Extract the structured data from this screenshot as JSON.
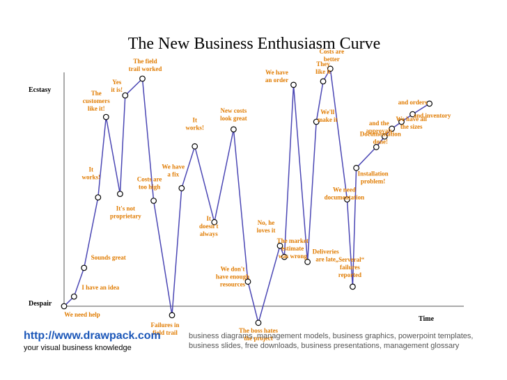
{
  "chart_data": {
    "type": "line",
    "title": "The New Business Enthusiasm Curve",
    "xlabel": "Time",
    "ylabel_top": "Ecstasy",
    "ylabel_bottom": "Despair",
    "xlim": [
      0,
      100
    ],
    "ylim": [
      0,
      100
    ],
    "line_color": "#4a46b4",
    "label_color": "#e07b00",
    "points": [
      {
        "x": 0.0,
        "y": 0.0,
        "label": [
          "We need help"
        ]
      },
      {
        "x": 2.5,
        "y": 4.2,
        "label": [
          "I have an idea"
        ]
      },
      {
        "x": 5.0,
        "y": 16.7,
        "label": [
          "Sounds great"
        ]
      },
      {
        "x": 8.5,
        "y": 47.4,
        "label": [
          "It",
          "works!"
        ]
      },
      {
        "x": 10.5,
        "y": 82.4,
        "label": [
          "The",
          "customers",
          "like it!"
        ]
      },
      {
        "x": 14.0,
        "y": 48.9,
        "label": [
          "It's not",
          "proprietary"
        ]
      },
      {
        "x": 15.3,
        "y": 91.8,
        "label": [
          "Yes",
          "it is!"
        ]
      },
      {
        "x": 19.6,
        "y": 99.1,
        "label": [
          "The field",
          "trail worked"
        ]
      },
      {
        "x": 22.4,
        "y": 45.9,
        "label": [
          "Costs are",
          "too high"
        ]
      },
      {
        "x": 27.0,
        "y": -3.9,
        "label": [
          "Failures in",
          "field trail"
        ]
      },
      {
        "x": 29.4,
        "y": 51.4,
        "label": [
          "We have",
          "a fix"
        ]
      },
      {
        "x": 32.7,
        "y": 69.6,
        "label": [
          "It",
          "works!"
        ]
      },
      {
        "x": 37.6,
        "y": 36.6,
        "label": [
          "It",
          "doesn't",
          "always"
        ]
      },
      {
        "x": 42.4,
        "y": 77.0,
        "label": [
          "New costs",
          "look great"
        ]
      },
      {
        "x": 46.0,
        "y": 10.7,
        "label": [
          "We don't",
          "have enough",
          "resources"
        ]
      },
      {
        "x": 48.6,
        "y": -7.2,
        "label": [
          "The boss hates",
          "the project"
        ]
      },
      {
        "x": 54.0,
        "y": 26.3,
        "label": [
          "No, he",
          "loves it"
        ]
      },
      {
        "x": 55.1,
        "y": 21.5,
        "label": [
          "The market",
          "estimate",
          "was wrong"
        ]
      },
      {
        "x": 57.4,
        "y": 96.4,
        "label": [
          "We have",
          "an order"
        ]
      },
      {
        "x": 60.9,
        "y": 19.3,
        "label": [
          "Deliveries",
          "are late"
        ]
      },
      {
        "x": 63.1,
        "y": 80.3,
        "label": [
          "We'll",
          "make it"
        ]
      },
      {
        "x": 64.8,
        "y": 97.9,
        "label": [
          "They",
          "like it"
        ]
      },
      {
        "x": 66.6,
        "y": 103.4,
        "label": [
          "Costs are",
          "better"
        ]
      },
      {
        "x": 70.8,
        "y": 46.5,
        "label": [
          "We need",
          "documentation"
        ]
      },
      {
        "x": 72.2,
        "y": 8.5,
        "label": [
          "„Serveral“",
          "failures",
          "reported"
        ]
      },
      {
        "x": 73.1,
        "y": 60.2,
        "label": [
          "Installation",
          "problem!"
        ]
      },
      {
        "x": 78.1,
        "y": 69.3,
        "label": [
          "Documentation",
          "done!"
        ]
      },
      {
        "x": 80.2,
        "y": 73.9,
        "label": [
          "and the",
          "approvals"
        ]
      },
      {
        "x": 82.0,
        "y": 77.3,
        "label": [
          "We have all",
          "the sizes"
        ]
      },
      {
        "x": 84.4,
        "y": 80.3,
        "label": [
          "and inventory"
        ]
      },
      {
        "x": 87.2,
        "y": 83.6,
        "label": [
          "and orders"
        ]
      },
      {
        "x": 91.4,
        "y": 88.2,
        "label": []
      }
    ]
  },
  "footer": {
    "link_text": "http://www.drawpack.com",
    "tagline": "your visual business knowledge",
    "description": "business diagrams, management models, business graphics, powerpoint templates, business slides, free downloads, business presentations, management glossary"
  }
}
